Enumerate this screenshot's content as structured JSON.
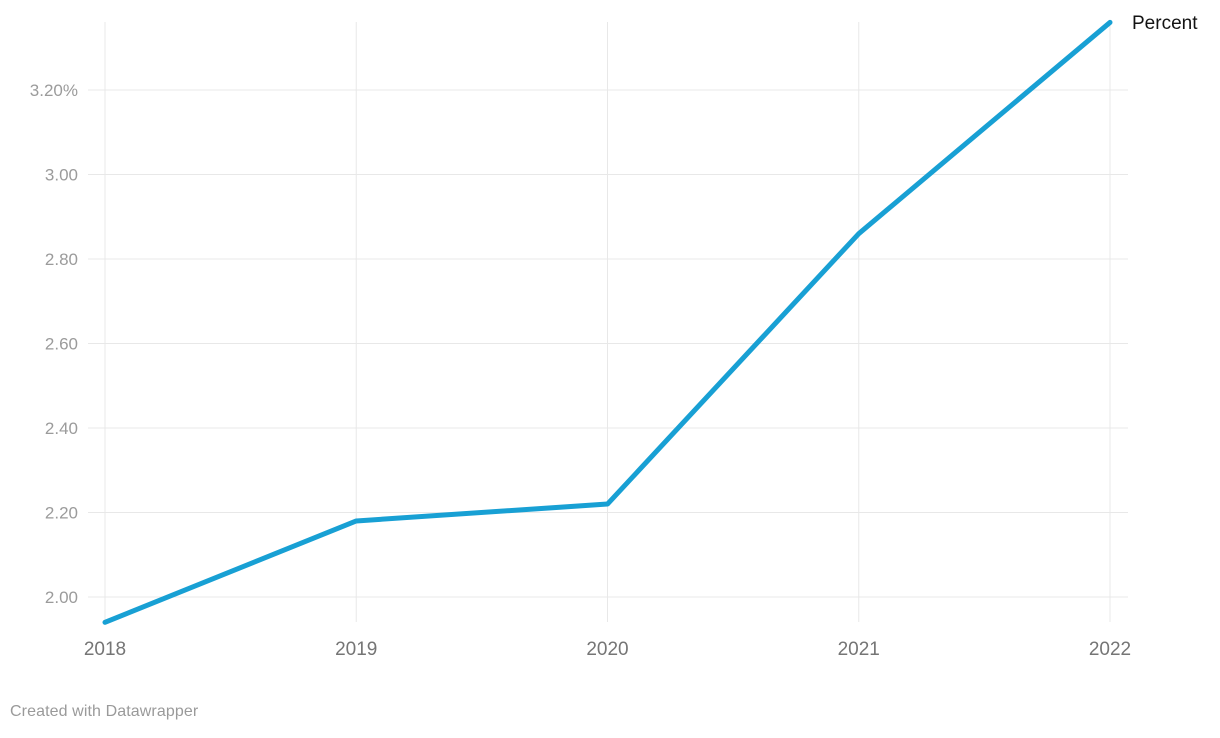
{
  "chart": {
    "legend_label": "Percent",
    "colors": {
      "line": "#18a0d4",
      "grid": "#e8e8e8",
      "y_tick_label": "#9b9b9b",
      "x_tick_label": "#757575",
      "legend_text": "#131313",
      "footer_text": "#9a9a9a",
      "background": "#ffffff"
    }
  },
  "chart_data": {
    "type": "line",
    "x": [
      2018,
      2019,
      2020,
      2021,
      2022
    ],
    "x_tick_labels": [
      "2018",
      "2019",
      "2020",
      "2021",
      "2022"
    ],
    "series": [
      {
        "name": "Percent",
        "values": [
          1.94,
          2.18,
          2.22,
          2.86,
          3.36
        ]
      }
    ],
    "y_ticks": [
      {
        "label": "3.20%",
        "value": 3.2
      },
      {
        "label": "3.00",
        "value": 3.0
      },
      {
        "label": "2.80",
        "value": 2.8
      },
      {
        "label": "2.60",
        "value": 2.6
      },
      {
        "label": "2.40",
        "value": 2.4
      },
      {
        "label": "2.20",
        "value": 2.2
      },
      {
        "label": "2.00",
        "value": 2.0
      }
    ],
    "ylim": [
      1.94,
      3.36
    ],
    "xlabel": "",
    "ylabel": "",
    "title": "",
    "grid": true,
    "legend_position": "end-of-line-top-right",
    "unit": "percent"
  },
  "footer": {
    "text": "Created with Datawrapper"
  }
}
